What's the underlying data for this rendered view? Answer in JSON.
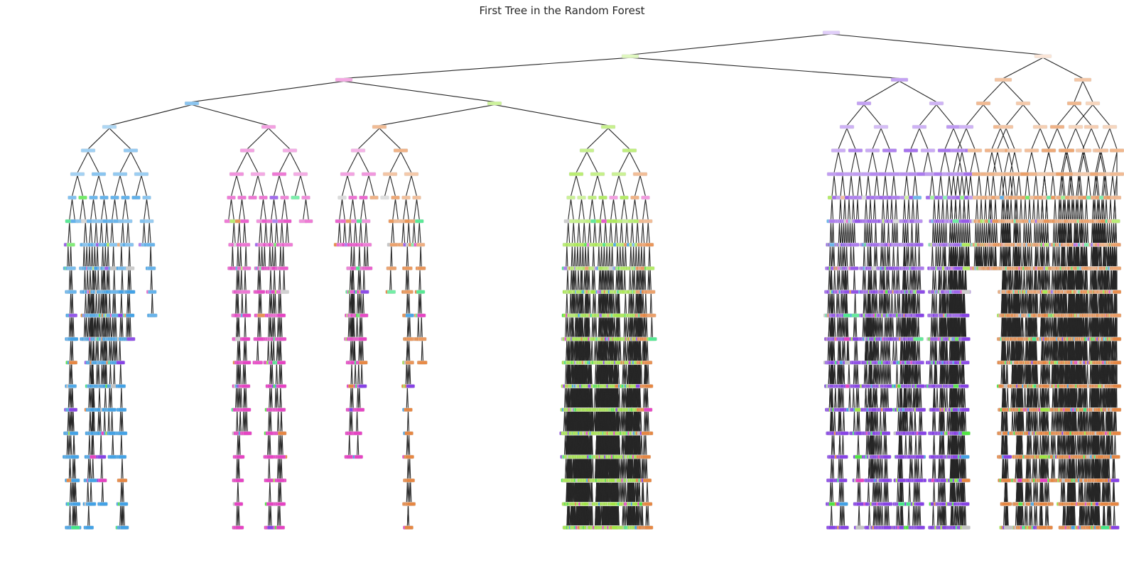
{
  "figure": {
    "title": "First Tree in the Random Forest"
  },
  "tree": {
    "class_palette": {
      "class_a": "#e58139",
      "class_b": "#399de5",
      "class_c": "#47e539",
      "class_d": "#39e581",
      "class_e": "#8139e5",
      "class_f": "#e539c0",
      "class_g": "#9de539",
      "class_h": "#c0c0c0"
    },
    "edge_color": "#262626",
    "max_depth": 22
  }
}
